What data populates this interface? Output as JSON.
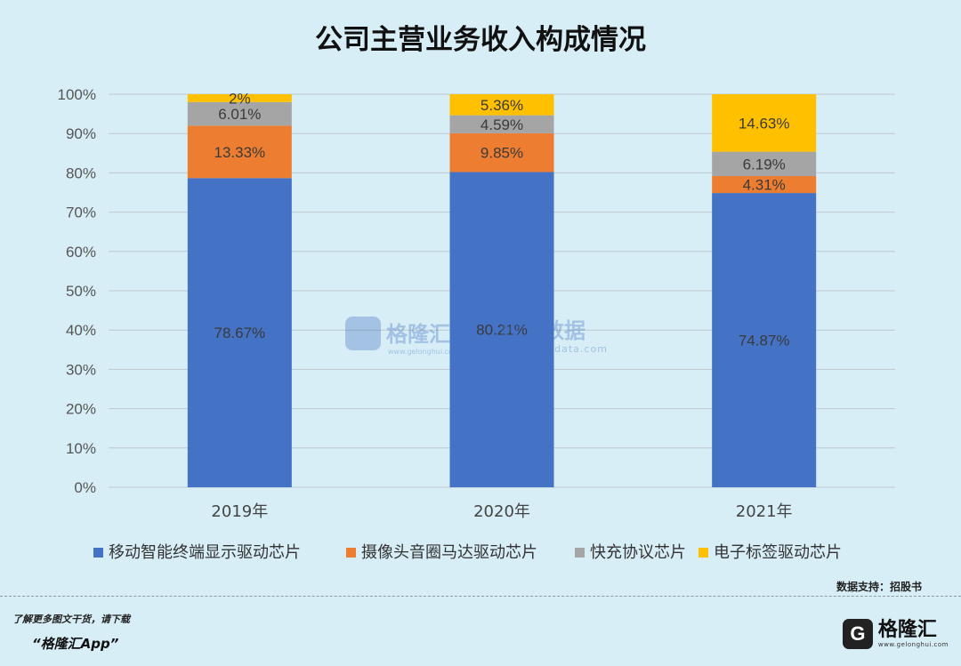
{
  "chart_data": {
    "type": "bar",
    "stacked": true,
    "title": "公司主营业务收入构成情况",
    "categories": [
      "2019年",
      "2020年",
      "2021年"
    ],
    "ylim": [
      0,
      100
    ],
    "yticks": [
      "0%",
      "10%",
      "20%",
      "30%",
      "40%",
      "50%",
      "60%",
      "70%",
      "80%",
      "90%",
      "100%"
    ],
    "grid": true,
    "legend_position": "bottom",
    "series": [
      {
        "name": "移动智能终端显示驱动芯片",
        "color": "#4472c4",
        "values": [
          78.67,
          80.21,
          74.87
        ],
        "labels": [
          "78.67%",
          "80.21%",
          "74.87%"
        ]
      },
      {
        "name": "摄像头音圈马达驱动芯片",
        "color": "#ed7d31",
        "values": [
          13.33,
          9.85,
          4.31
        ],
        "labels": [
          "13.33%",
          "9.85%",
          "4.31%"
        ]
      },
      {
        "name": "快充协议芯片",
        "color": "#a5a5a5",
        "values": [
          6.01,
          4.59,
          6.19
        ],
        "labels": [
          "6.01%",
          "4.59%",
          "6.19%"
        ]
      },
      {
        "name": "电子标签驱动芯片",
        "color": "#ffc000",
        "values": [
          2,
          5.36,
          14.63
        ],
        "labels": [
          "2%",
          "5.36%",
          "14.63%"
        ]
      }
    ]
  },
  "watermark": {
    "brand": "格隆汇",
    "brand_url": "www.gelonghui.com",
    "site": "股大数据",
    "site_url": "www.gogudata.com"
  },
  "source_note": "数据支持：招股书",
  "footer": {
    "line1": "了解更多图文干货，请下载",
    "line2": "“格隆汇App”",
    "logo_mark": "G",
    "logo_name": "格隆汇",
    "logo_url": "www.gelonghui.com"
  }
}
